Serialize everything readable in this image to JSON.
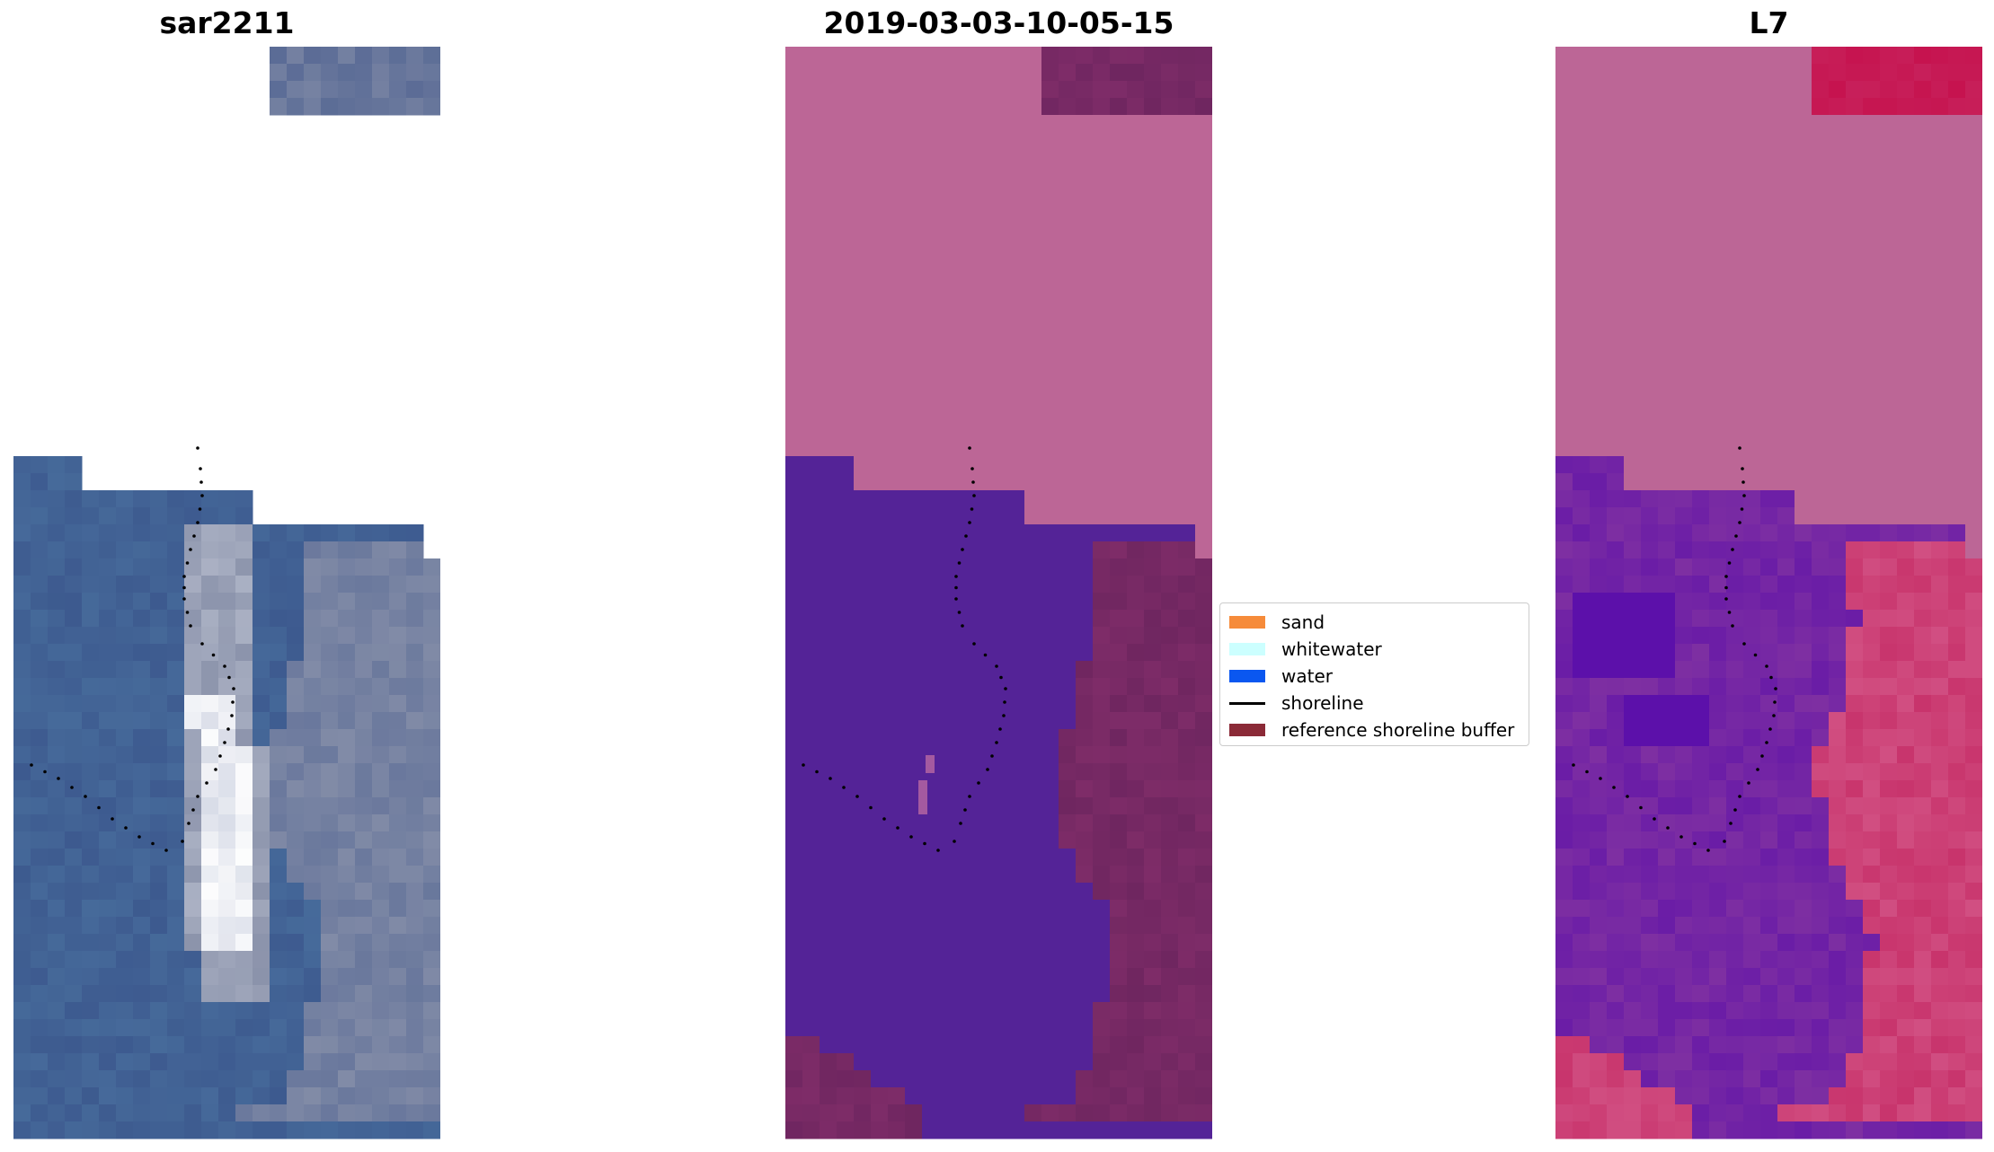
{
  "titles": {
    "left": "sar2211",
    "middle": "2019-03-03-10-05-15",
    "right": "L7"
  },
  "legend": {
    "entries": [
      {
        "label": "sand",
        "color": "#f68b3a",
        "kind": "patch"
      },
      {
        "label": "whitewater",
        "color": "#ccffff",
        "kind": "patch"
      },
      {
        "label": "water",
        "color": "#0a57f0",
        "kind": "patch"
      },
      {
        "label": "shoreline",
        "color": "#000000",
        "kind": "line"
      },
      {
        "label": "reference shoreline buffer",
        "color": "#8b2a37",
        "kind": "patch"
      }
    ]
  },
  "colors": {
    "rgb_water": "#3d5a8f",
    "rgb_water_alt": "#466a9a",
    "rgb_land": "#5b6c96",
    "rgb_land_alt": "#8b93ab",
    "rgb_foam": "#d9dde8",
    "rgb_foam_bright": "#ffffff",
    "class_nodata": "#bc6696",
    "class_water": "#542397",
    "class_buffer": "#6f2660",
    "class_buffer_alt": "#7e2c68",
    "class_speck": "#a45aa0",
    "mndwi_nodata": "#bc6696",
    "mndwi_water": "#7e2fa2",
    "mndwi_water_deep": "#560aab",
    "mndwi_land": "#c8346c",
    "mndwi_land_alt": "#d14f82",
    "mndwi_land_top": "#c6124e",
    "shoreline": "#000000"
  }
}
